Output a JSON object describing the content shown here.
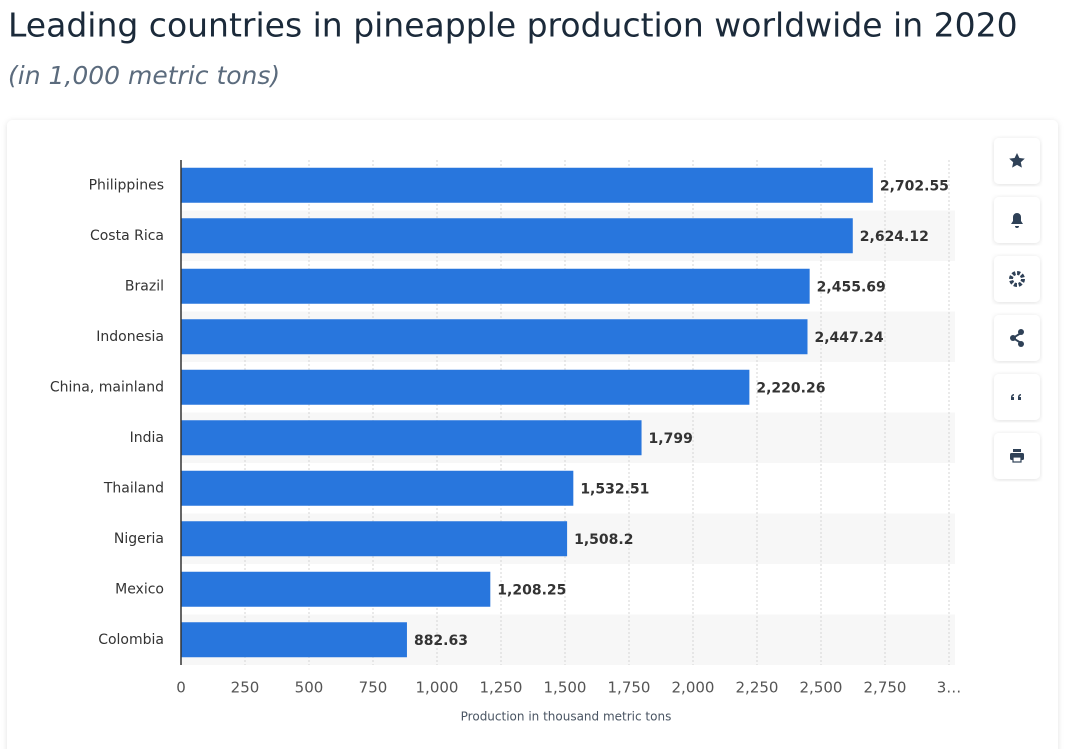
{
  "chart_data": {
    "type": "bar",
    "orientation": "horizontal",
    "title": "Leading countries in pineapple production worldwide in 2020",
    "subtitle": "(in 1,000 metric tons)",
    "x_label": "Production in thousand metric tons",
    "categories": [
      "Philippines",
      "Costa Rica",
      "Brazil",
      "Indonesia",
      "China, mainland",
      "India",
      "Thailand",
      "Nigeria",
      "Mexico",
      "Colombia"
    ],
    "values": [
      2702.55,
      2624.12,
      2455.69,
      2447.24,
      2220.26,
      1799,
      1532.51,
      1508.2,
      1208.25,
      882.63
    ],
    "value_labels": [
      "2,702.55",
      "2,624.12",
      "2,455.69",
      "2,447.24",
      "2,220.26",
      "1,799",
      "1,532.51",
      "1,508.2",
      "1,208.25",
      "882.63"
    ],
    "color": "#2876dd",
    "xlim": [
      0,
      3000
    ],
    "xticks": [
      0,
      250,
      500,
      750,
      {
        "value": 1000,
        "label": "1,000"
      },
      {
        "value": 1250,
        "label": "1,250"
      },
      {
        "value": 1500,
        "label": "1,500"
      },
      {
        "value": 1750,
        "label": "1,750"
      },
      {
        "value": 2000,
        "label": "2,000"
      },
      {
        "value": 2250,
        "label": "2,250"
      },
      {
        "value": 2500,
        "label": "2,500"
      },
      {
        "value": 2750,
        "label": "2,750"
      },
      {
        "value": 3000,
        "label": "3…"
      }
    ],
    "grid": true
  }
}
